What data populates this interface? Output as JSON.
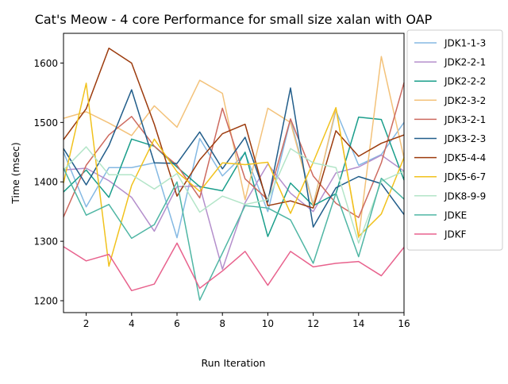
{
  "chart_data": {
    "type": "line",
    "title": "Cat's Meow - 4 core Performance for small size xalan with OAP",
    "xlabel": "Run Iteration",
    "ylabel": "Time (msec)",
    "xlim": [
      1,
      16
    ],
    "ylim": [
      1180,
      1650
    ],
    "xticks": [
      2,
      4,
      6,
      8,
      10,
      12,
      14,
      16
    ],
    "yticks": [
      1200,
      1300,
      1400,
      1500,
      1600
    ],
    "grid": false,
    "legend_position": "outside-right",
    "x": [
      1,
      2,
      3,
      4,
      5,
      6,
      7,
      8,
      9,
      10,
      11,
      12,
      13,
      14,
      15,
      16
    ],
    "series": [
      {
        "name": "JDK1-1-3",
        "color": "#85b9e3",
        "values": [
          1450,
          1358,
          1424,
          1424,
          1432,
          1306,
          1473,
          1410,
          1448,
          1350,
          1505,
          1362,
          1520,
          1428,
          1446,
          1500
        ]
      },
      {
        "name": "JDK2-2-1",
        "color": "#b48fcc",
        "values": [
          1420,
          1423,
          1402,
          1374,
          1317,
          1392,
          1393,
          1253,
          1365,
          1430,
          1381,
          1350,
          1415,
          1425,
          1445,
          1418
        ]
      },
      {
        "name": "JDK2-2-2",
        "color": "#1a9e8b",
        "values": [
          1383,
          1420,
          1374,
          1472,
          1460,
          1425,
          1392,
          1385,
          1450,
          1308,
          1398,
          1360,
          1380,
          1509,
          1505,
          1403
        ]
      },
      {
        "name": "JDK2-3-2",
        "color": "#f3c27a",
        "values": [
          1507,
          1518,
          1499,
          1478,
          1528,
          1492,
          1571,
          1549,
          1370,
          1524,
          1500,
          1360,
          1524,
          1306,
          1611,
          1440
        ]
      },
      {
        "name": "JDK3-2-1",
        "color": "#cd6a5f",
        "values": [
          1341,
          1428,
          1479,
          1510,
          1460,
          1428,
          1373,
          1524,
          1405,
          1370,
          1506,
          1410,
          1364,
          1340,
          1432,
          1567
        ]
      },
      {
        "name": "JDK3-2-3",
        "color": "#215d8a",
        "values": [
          1456,
          1395,
          1461,
          1555,
          1432,
          1431,
          1484,
          1422,
          1475,
          1366,
          1558,
          1324,
          1390,
          1409,
          1397,
          1345
        ]
      },
      {
        "name": "JDK5-4-4",
        "color": "#9c3b0d",
        "values": [
          1471,
          1523,
          1625,
          1600,
          1497,
          1376,
          1437,
          1481,
          1497,
          1360,
          1368,
          1356,
          1486,
          1443,
          1465,
          1479
        ]
      },
      {
        "name": "JDK5-6-7",
        "color": "#f1c21d",
        "values": [
          1398,
          1566,
          1258,
          1394,
          1472,
          1417,
          1384,
          1432,
          1429,
          1433,
          1347,
          1433,
          1525,
          1308,
          1346,
          1441
        ]
      },
      {
        "name": "JDK8-9-9",
        "color": "#b3e5c8",
        "values": [
          1420,
          1459,
          1412,
          1412,
          1388,
          1414,
          1349,
          1376,
          1362,
          1370,
          1456,
          1432,
          1424,
          1297,
          1401,
          1418
        ]
      },
      {
        "name": "JDKE",
        "color": "#4fb6a4",
        "values": [
          1423,
          1344,
          1362,
          1305,
          1328,
          1400,
          1201,
          1280,
          1360,
          1356,
          1336,
          1263,
          1381,
          1274,
          1406,
          1371
        ]
      },
      {
        "name": "JDKF",
        "color": "#e8628d",
        "values": [
          1291,
          1267,
          1278,
          1217,
          1228,
          1297,
          1221,
          1250,
          1283,
          1226,
          1283,
          1257,
          1263,
          1266,
          1242,
          1290
        ]
      }
    ]
  }
}
